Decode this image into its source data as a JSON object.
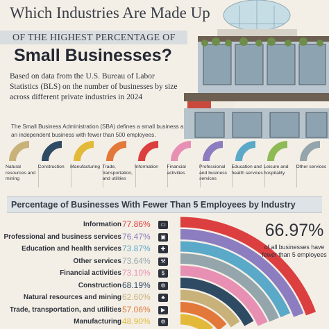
{
  "header": {
    "title_line1": "Which Industries Are Made Up",
    "title_line2": "OF THE HIGHEST PERCENTAGE OF",
    "title_line3": "Small Businesses?",
    "description": "Based on data from the U.S. Bureau of Labor Statistics (BLS) on the number of businesses by size across different private industries in 2024",
    "sba_note": "The Small Business Administration (SBA) defines a small business as an independent business with fewer than 500 employees."
  },
  "industries": [
    {
      "label": "Natural resources and mining",
      "color": "#c8b27a"
    },
    {
      "label": "Construction",
      "color": "#2f4a63"
    },
    {
      "label": "Manufacturing",
      "color": "#e3b93a"
    },
    {
      "label": "Trade, transportation, and utilities",
      "color": "#e2793a"
    },
    {
      "label": "Information",
      "color": "#dc3f3f"
    },
    {
      "label": "Financial activities",
      "color": "#e88fb4"
    },
    {
      "label": "Professional and business services",
      "color": "#8c7cc0"
    },
    {
      "label": "Education and health services",
      "color": "#5aa9c9"
    },
    {
      "label": "Leisure and hospitality",
      "color": "#8dba55"
    },
    {
      "label": "Other services",
      "color": "#94a6ac"
    }
  ],
  "section_title": "Percentage of Businesses With Fewer Than 5 Employees by Industry",
  "summary": {
    "value": "66.97%",
    "text": "of all businesses have fewer than 5 employees"
  },
  "chart_data": {
    "type": "bar",
    "title": "Percentage of Businesses With Fewer Than 5 Employees by Industry",
    "categories": [
      "Information",
      "Professional and business services",
      "Education and health services",
      "Other services",
      "Financial activities",
      "Construction",
      "Natural resources and mining",
      "Trade, transportation, and utilities",
      "Manufacturing"
    ],
    "values": [
      77.86,
      76.47,
      73.87,
      73.64,
      73.1,
      68.19,
      62.6,
      57.06,
      48.9
    ],
    "value_labels": [
      "77.86%",
      "76.47%",
      "73.87%",
      "73.64%",
      "73.10%",
      "68.19%",
      "62.60%",
      "57.06%",
      "48.90%"
    ],
    "colors": [
      "#dc3f3f",
      "#8c7cc0",
      "#5aa9c9",
      "#94a6ac",
      "#e88fb4",
      "#2f4a63",
      "#c8b27a",
      "#e2793a",
      "#e3b93a"
    ],
    "icons": [
      "monitor-icon",
      "briefcase-icon",
      "medical-icon",
      "wrench-icon",
      "money-icon",
      "tools-icon",
      "tree-icon",
      "truck-icon",
      "gear-icon"
    ],
    "total": {
      "value": 66.97,
      "label": "66.97%"
    }
  }
}
